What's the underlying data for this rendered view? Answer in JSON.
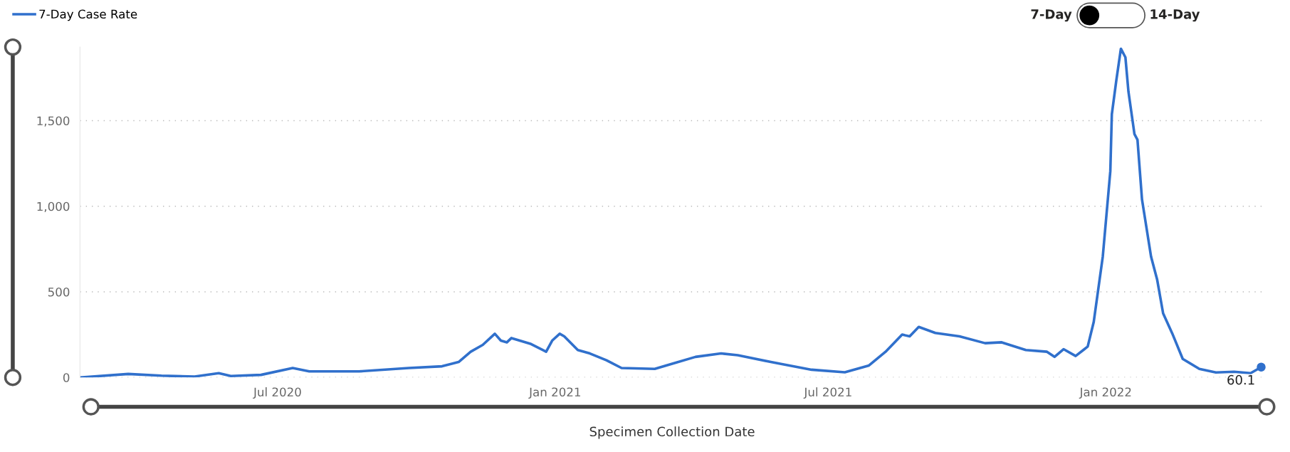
{
  "chart_data": {
    "type": "line",
    "xlabel": "Specimen Collection Date",
    "annotations": [
      "7-Day",
      "14-Day"
    ],
    "x": [
      "2020-02-21",
      "2020-03-24",
      "2020-04-15",
      "2020-05-07",
      "2020-05-23",
      "2020-05-31",
      "2020-06-20",
      "2020-07-11",
      "2020-07-22",
      "2020-08-24",
      "2020-09-26",
      "2020-10-18",
      "2020-10-29",
      "2020-11-06",
      "2020-11-14",
      "2020-11-22",
      "2020-11-26",
      "2020-11-30",
      "2020-12-03",
      "2020-12-16",
      "2020-12-26",
      "2020-12-30",
      "2021-01-04",
      "2021-01-07",
      "2021-01-16",
      "2021-01-24",
      "2021-02-04",
      "2021-02-14",
      "2021-03-08",
      "2021-04-04",
      "2021-04-21",
      "2021-05-02",
      "2021-05-24",
      "2021-06-20",
      "2021-07-12",
      "2021-07-28",
      "2021-08-08",
      "2021-08-19",
      "2021-08-24",
      "2021-08-30",
      "2021-09-10",
      "2021-09-26",
      "2021-10-13",
      "2021-10-24",
      "2021-11-09",
      "2021-11-23",
      "2021-11-28",
      "2021-12-04",
      "2021-12-12",
      "2021-12-20",
      "2021-12-24",
      "2021-12-30",
      "2022-01-04",
      "2022-01-05",
      "2022-01-08",
      "2022-01-11",
      "2022-01-14",
      "2022-01-16",
      "2022-01-20",
      "2022-01-22",
      "2022-01-25",
      "2022-01-31",
      "2022-02-04",
      "2022-02-08",
      "2022-02-14",
      "2022-02-21",
      "2022-03-04",
      "2022-03-15",
      "2022-03-27",
      "2022-04-07",
      "2022-04-14"
    ],
    "series": [
      {
        "name": "7-Day Case Rate",
        "color": "#3070cc",
        "values": [
          0,
          20,
          10,
          5,
          25,
          8,
          15,
          55,
          35,
          35,
          55,
          65,
          90,
          150,
          190,
          255,
          215,
          205,
          230,
          195,
          150,
          215,
          255,
          240,
          160,
          140,
          100,
          55,
          50,
          120,
          140,
          130,
          90,
          45,
          30,
          70,
          150,
          250,
          240,
          295,
          260,
          240,
          200,
          205,
          160,
          150,
          120,
          165,
          125,
          180,
          324,
          706,
          1205,
          1537,
          1737,
          1920,
          1870,
          1670,
          1421,
          1388,
          1039,
          706,
          573,
          374,
          258,
          108,
          50,
          29,
          33,
          25,
          60.1
        ],
        "value_labels": [
          null,
          null,
          null,
          null,
          null,
          null,
          null,
          null,
          null,
          null,
          null,
          null,
          null,
          null,
          null,
          null,
          null,
          null,
          null,
          null,
          null,
          null,
          null,
          null,
          null,
          null,
          null,
          null,
          null,
          null,
          null,
          null,
          null,
          null,
          null,
          null,
          null,
          null,
          null,
          null,
          null,
          null,
          null,
          null,
          null,
          null,
          null,
          null,
          null,
          null,
          null,
          null,
          null,
          null,
          null,
          null,
          null,
          null,
          null,
          null,
          null,
          null,
          null,
          null,
          null,
          null,
          null,
          null,
          null,
          null,
          "60.1"
        ]
      }
    ],
    "xlim": [
      "2020-02-21",
      "2022-04-16"
    ],
    "xticks": [
      {
        "value": "2020-07-01",
        "label": "Jul 2020"
      },
      {
        "value": "2021-01-01",
        "label": "Jan 2021"
      },
      {
        "value": "2021-07-01",
        "label": "Jul 2021"
      },
      {
        "value": "2022-01-01",
        "label": "Jan 2022"
      }
    ],
    "ylim": [
      0,
      1930
    ],
    "yticks": [
      0,
      500,
      {
        "value": 1000,
        "label": "1,000"
      },
      {
        "value": 1500,
        "label": "1,500"
      }
    ],
    "grid": "y",
    "legend": "top left",
    "line_style": "solid"
  }
}
